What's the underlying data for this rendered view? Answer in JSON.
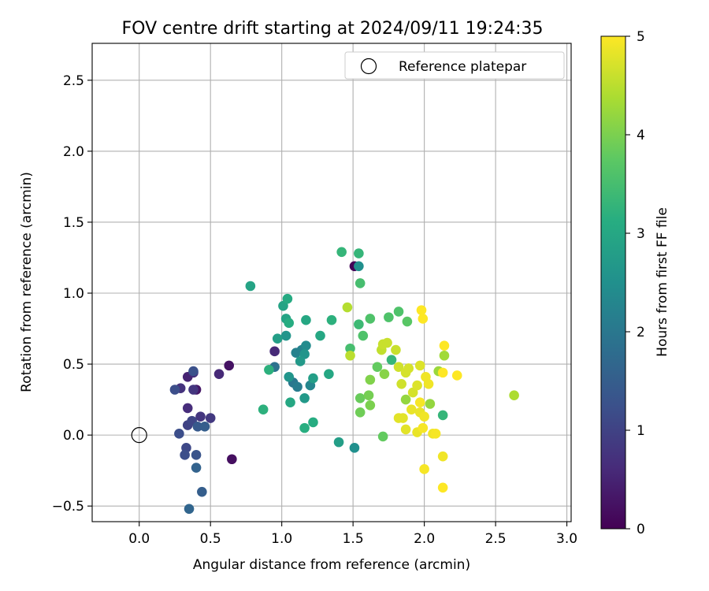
{
  "chart_data": {
    "type": "scatter",
    "title": "FOV centre drift starting at 2024/09/11 19:24:35",
    "xlabel": "Angular distance from reference (arcmin)",
    "ylabel": "Rotation from reference (arcmin)",
    "xlim": [
      -0.33,
      3.03
    ],
    "ylim": [
      -0.61,
      2.76
    ],
    "xticks": [
      0.0,
      0.5,
      1.0,
      1.5,
      2.0,
      2.5,
      3.0
    ],
    "xtick_labels": [
      "0.0",
      "0.5",
      "1.0",
      "1.5",
      "2.0",
      "2.5",
      "3.0"
    ],
    "yticks": [
      -0.5,
      0.0,
      0.5,
      1.0,
      1.5,
      2.0,
      2.5
    ],
    "ytick_labels": [
      "−0.5",
      "0.0",
      "0.5",
      "1.0",
      "1.5",
      "2.0",
      "2.5"
    ],
    "grid": true,
    "colormap": "viridis",
    "colorbar": {
      "label": "Hours from first FF file",
      "min": 0,
      "max": 5,
      "ticks": [
        0,
        1,
        2,
        3,
        4,
        5
      ],
      "tick_labels": [
        "0",
        "1",
        "2",
        "3",
        "4",
        "5"
      ]
    },
    "legend": {
      "position": "top-right",
      "entries": [
        {
          "label": "Reference platepar",
          "marker": "open-circle"
        }
      ]
    },
    "reference_point": {
      "x": 0.0,
      "y": 0.0
    },
    "points": [
      {
        "x": 1.51,
        "y": 1.19,
        "c": 0.05
      },
      {
        "x": 0.65,
        "y": -0.17,
        "c": 0.2
      },
      {
        "x": 0.63,
        "y": 0.49,
        "c": 0.25
      },
      {
        "x": 0.4,
        "y": 0.32,
        "c": 0.3
      },
      {
        "x": 0.34,
        "y": 0.41,
        "c": 0.5
      },
      {
        "x": 0.56,
        "y": 0.43,
        "c": 0.6
      },
      {
        "x": 0.38,
        "y": 0.44,
        "c": 0.6
      },
      {
        "x": 0.95,
        "y": 0.59,
        "c": 0.6
      },
      {
        "x": 0.34,
        "y": 0.19,
        "c": 0.65
      },
      {
        "x": 0.29,
        "y": 0.33,
        "c": 0.75
      },
      {
        "x": 0.38,
        "y": 0.32,
        "c": 0.8
      },
      {
        "x": 0.43,
        "y": 0.13,
        "c": 0.8
      },
      {
        "x": 0.5,
        "y": 0.12,
        "c": 0.85
      },
      {
        "x": 0.34,
        "y": 0.07,
        "c": 1.0
      },
      {
        "x": 0.37,
        "y": 0.1,
        "c": 1.05
      },
      {
        "x": 0.33,
        "y": -0.09,
        "c": 1.1
      },
      {
        "x": 0.32,
        "y": -0.14,
        "c": 1.2
      },
      {
        "x": 0.28,
        "y": 0.01,
        "c": 1.2
      },
      {
        "x": 0.25,
        "y": 0.32,
        "c": 1.2
      },
      {
        "x": 0.38,
        "y": 0.45,
        "c": 1.25
      },
      {
        "x": 0.4,
        "y": -0.14,
        "c": 1.3
      },
      {
        "x": 0.41,
        "y": 0.06,
        "c": 1.4
      },
      {
        "x": 0.46,
        "y": 0.06,
        "c": 1.5
      },
      {
        "x": 0.44,
        "y": -0.4,
        "c": 1.5
      },
      {
        "x": 0.4,
        "y": -0.23,
        "c": 1.6
      },
      {
        "x": 0.35,
        "y": -0.52,
        "c": 1.65
      },
      {
        "x": 0.95,
        "y": 0.48,
        "c": 1.9
      },
      {
        "x": 1.08,
        "y": 0.37,
        "c": 2.0
      },
      {
        "x": 1.11,
        "y": 0.34,
        "c": 2.1
      },
      {
        "x": 1.1,
        "y": 0.58,
        "c": 2.2
      },
      {
        "x": 1.14,
        "y": 0.6,
        "c": 2.2
      },
      {
        "x": 1.2,
        "y": 0.35,
        "c": 2.3
      },
      {
        "x": 1.17,
        "y": 0.63,
        "c": 2.4
      },
      {
        "x": 1.54,
        "y": 1.19,
        "c": 2.5
      },
      {
        "x": 1.51,
        "y": -0.09,
        "c": 2.5
      },
      {
        "x": 1.03,
        "y": 0.7,
        "c": 2.6
      },
      {
        "x": 1.05,
        "y": 0.41,
        "c": 2.6
      },
      {
        "x": 1.16,
        "y": 0.57,
        "c": 2.6
      },
      {
        "x": 1.13,
        "y": 0.52,
        "c": 2.7
      },
      {
        "x": 1.16,
        "y": 0.26,
        "c": 2.7
      },
      {
        "x": 1.22,
        "y": 0.4,
        "c": 2.8
      },
      {
        "x": 1.4,
        "y": -0.05,
        "c": 2.8
      },
      {
        "x": 0.97,
        "y": 0.68,
        "c": 2.8
      },
      {
        "x": 0.78,
        "y": 1.05,
        "c": 2.9
      },
      {
        "x": 1.01,
        "y": 0.91,
        "c": 2.9
      },
      {
        "x": 1.03,
        "y": 0.82,
        "c": 2.9
      },
      {
        "x": 1.06,
        "y": 0.23,
        "c": 3.0
      },
      {
        "x": 1.17,
        "y": 0.81,
        "c": 3.0
      },
      {
        "x": 1.27,
        "y": 0.7,
        "c": 3.0
      },
      {
        "x": 1.33,
        "y": 0.43,
        "c": 3.0
      },
      {
        "x": 1.04,
        "y": 0.96,
        "c": 3.05
      },
      {
        "x": 1.05,
        "y": 0.79,
        "c": 3.1
      },
      {
        "x": 1.22,
        "y": 0.09,
        "c": 3.1
      },
      {
        "x": 1.16,
        "y": 0.05,
        "c": 3.15
      },
      {
        "x": 0.87,
        "y": 0.18,
        "c": 3.2
      },
      {
        "x": 0.91,
        "y": 0.46,
        "c": 3.2
      },
      {
        "x": 1.35,
        "y": 0.81,
        "c": 3.2
      },
      {
        "x": 1.42,
        "y": 1.29,
        "c": 3.3
      },
      {
        "x": 1.54,
        "y": 1.28,
        "c": 3.3
      },
      {
        "x": 2.13,
        "y": 0.14,
        "c": 3.3
      },
      {
        "x": 1.77,
        "y": 0.53,
        "c": 3.3
      },
      {
        "x": 1.54,
        "y": 0.78,
        "c": 3.4
      },
      {
        "x": 1.55,
        "y": 1.07,
        "c": 3.5
      },
      {
        "x": 1.48,
        "y": 0.61,
        "c": 3.5
      },
      {
        "x": 1.57,
        "y": 0.7,
        "c": 3.6
      },
      {
        "x": 1.62,
        "y": 0.82,
        "c": 3.6
      },
      {
        "x": 1.75,
        "y": 0.83,
        "c": 3.6
      },
      {
        "x": 1.82,
        "y": 0.87,
        "c": 3.6
      },
      {
        "x": 1.88,
        "y": 0.8,
        "c": 3.7
      },
      {
        "x": 1.71,
        "y": -0.01,
        "c": 3.8
      },
      {
        "x": 1.67,
        "y": 0.48,
        "c": 3.8
      },
      {
        "x": 1.55,
        "y": 0.26,
        "c": 3.85
      },
      {
        "x": 1.55,
        "y": 0.16,
        "c": 3.9
      },
      {
        "x": 1.61,
        "y": 0.28,
        "c": 3.95
      },
      {
        "x": 1.62,
        "y": 0.21,
        "c": 4.0
      },
      {
        "x": 1.62,
        "y": 0.39,
        "c": 4.05
      },
      {
        "x": 1.72,
        "y": 0.43,
        "c": 4.1
      },
      {
        "x": 1.87,
        "y": 0.25,
        "c": 4.2
      },
      {
        "x": 2.04,
        "y": 0.22,
        "c": 4.2
      },
      {
        "x": 2.1,
        "y": 0.45,
        "c": 4.25
      },
      {
        "x": 2.14,
        "y": 0.56,
        "c": 4.3
      },
      {
        "x": 2.63,
        "y": 0.28,
        "c": 4.4
      },
      {
        "x": 1.46,
        "y": 0.9,
        "c": 4.45
      },
      {
        "x": 1.48,
        "y": 0.56,
        "c": 4.5
      },
      {
        "x": 1.7,
        "y": 0.6,
        "c": 4.55
      },
      {
        "x": 1.71,
        "y": 0.64,
        "c": 4.6
      },
      {
        "x": 1.74,
        "y": 0.65,
        "c": 4.6
      },
      {
        "x": 1.8,
        "y": 0.6,
        "c": 4.6
      },
      {
        "x": 1.82,
        "y": 0.48,
        "c": 4.65
      },
      {
        "x": 1.84,
        "y": 0.36,
        "c": 4.65
      },
      {
        "x": 1.87,
        "y": 0.44,
        "c": 4.7
      },
      {
        "x": 1.89,
        "y": 0.47,
        "c": 4.7
      },
      {
        "x": 1.92,
        "y": 0.3,
        "c": 4.7
      },
      {
        "x": 1.95,
        "y": 0.35,
        "c": 4.75
      },
      {
        "x": 1.97,
        "y": 0.49,
        "c": 4.75
      },
      {
        "x": 1.82,
        "y": 0.12,
        "c": 4.8
      },
      {
        "x": 1.85,
        "y": 0.12,
        "c": 4.8
      },
      {
        "x": 1.87,
        "y": 0.04,
        "c": 4.8
      },
      {
        "x": 1.91,
        "y": 0.18,
        "c": 4.85
      },
      {
        "x": 1.95,
        "y": 0.02,
        "c": 4.85
      },
      {
        "x": 1.97,
        "y": 0.16,
        "c": 4.85
      },
      {
        "x": 2.0,
        "y": 0.13,
        "c": 4.9
      },
      {
        "x": 2.01,
        "y": 0.41,
        "c": 4.9
      },
      {
        "x": 2.03,
        "y": 0.36,
        "c": 4.9
      },
      {
        "x": 2.06,
        "y": 0.01,
        "c": 4.9
      },
      {
        "x": 1.97,
        "y": 0.23,
        "c": 4.95
      },
      {
        "x": 1.99,
        "y": 0.05,
        "c": 4.95
      },
      {
        "x": 2.0,
        "y": -0.24,
        "c": 4.95
      },
      {
        "x": 1.98,
        "y": 0.88,
        "c": 5.0
      },
      {
        "x": 1.99,
        "y": 0.82,
        "c": 5.0
      },
      {
        "x": 2.13,
        "y": 0.44,
        "c": 5.0
      },
      {
        "x": 2.14,
        "y": 0.63,
        "c": 5.0
      },
      {
        "x": 2.23,
        "y": 0.42,
        "c": 5.0
      },
      {
        "x": 2.13,
        "y": -0.15,
        "c": 4.9
      },
      {
        "x": 2.13,
        "y": -0.37,
        "c": 5.0
      },
      {
        "x": 2.08,
        "y": 0.01,
        "c": 4.95
      }
    ]
  }
}
